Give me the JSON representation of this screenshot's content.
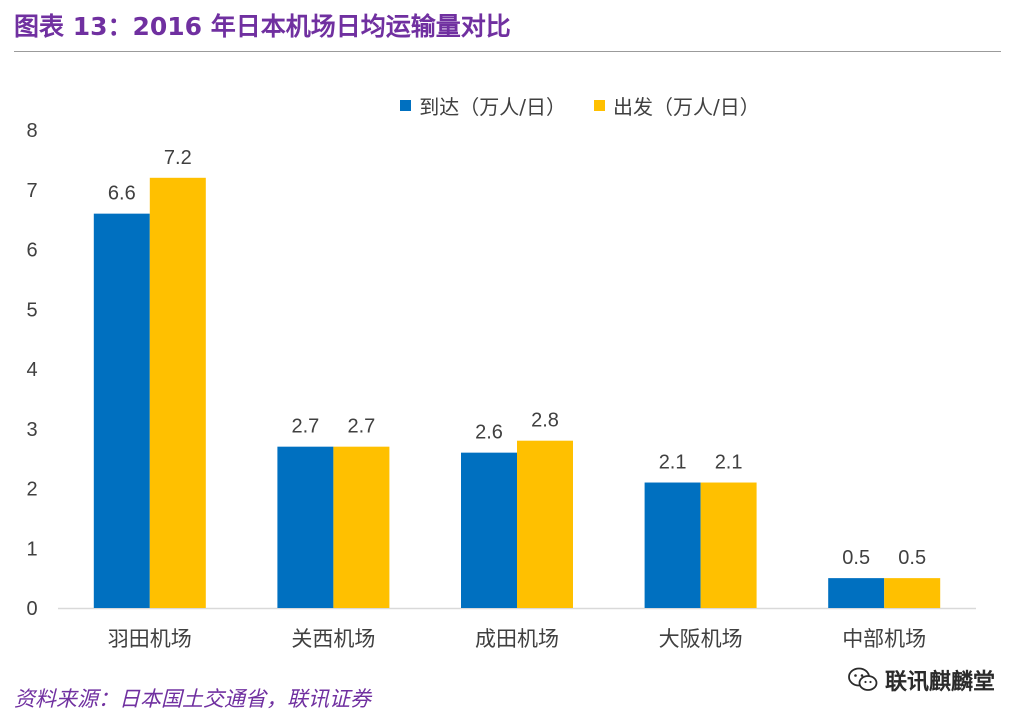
{
  "figure": {
    "title": "图表 13：2016 年日本机场日均运输量对比",
    "source": "资料来源：日本国土交通省，联讯证券",
    "watermark": "联讯麒麟堂",
    "watermark_icon": "wechat-icon"
  },
  "chart_data": {
    "type": "bar",
    "title": "",
    "categories": [
      "羽田机场",
      "关西机场",
      "成田机场",
      "大阪机场",
      "中部机场"
    ],
    "series": [
      {
        "name": "到达（万人/日）",
        "color": "#0070c0",
        "values": [
          6.6,
          2.7,
          2.6,
          2.1,
          0.5
        ]
      },
      {
        "name": "出发（万人/日）",
        "color": "#ffc000",
        "values": [
          7.2,
          2.7,
          2.8,
          2.1,
          0.5
        ]
      }
    ],
    "value_labels": [
      [
        "6.6",
        "2.7",
        "2.6",
        "2.1",
        "0.5"
      ],
      [
        "7.2",
        "2.7",
        "2.8",
        "2.1",
        "0.5"
      ]
    ],
    "ylim": [
      0,
      8
    ],
    "yticks": [
      "0",
      "1",
      "2",
      "3",
      "4",
      "5",
      "6",
      "7",
      "8"
    ],
    "xlabel": "",
    "ylabel": "",
    "grid": false,
    "legend_position": "top"
  }
}
